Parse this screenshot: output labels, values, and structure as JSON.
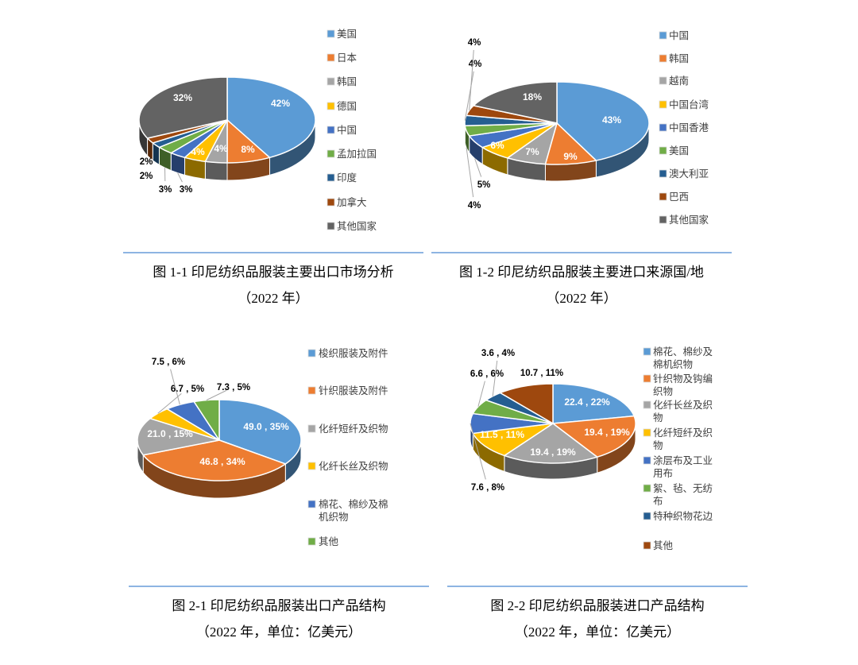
{
  "page": {
    "background_color": "#ffffff",
    "divider_color": "#8DB4E2"
  },
  "chart_data": [
    {
      "id": "fig-1-1",
      "type": "pie",
      "style": "3d-pie",
      "title": "图 1-1 印尼纺织品服装主要出口市场分析",
      "subtitle": "（2022 年）",
      "unit": "%",
      "legend_position": "right",
      "labels": [
        "美国",
        "日本",
        "韩国",
        "德国",
        "中国",
        "孟加拉国",
        "印度",
        "加拿大",
        "其他国家"
      ],
      "values": [
        42,
        8,
        4,
        4,
        3,
        3,
        2,
        2,
        32
      ],
      "data_labels": [
        "42%",
        "8%",
        "4%",
        "4%",
        "3%",
        "3%",
        "2%",
        "2%",
        "32%"
      ],
      "colors": [
        "#5B9BD5",
        "#ED7D31",
        "#A5A5A5",
        "#FFC000",
        "#4472C4",
        "#70AD47",
        "#255E91",
        "#9E480E",
        "#636363"
      ]
    },
    {
      "id": "fig-1-2",
      "type": "pie",
      "style": "3d-pie",
      "title": "图 1-2 印尼纺织品服装主要进口来源国/地",
      "subtitle": "（2022 年）",
      "unit": "%",
      "legend_position": "right",
      "labels": [
        "中国",
        "韩国",
        "越南",
        "中国台湾",
        "中国香港",
        "美国",
        "澳大利亚",
        "巴西",
        "其他国家"
      ],
      "values": [
        43,
        9,
        7,
        6,
        5,
        4,
        4,
        4,
        18
      ],
      "data_labels": [
        "43%",
        "9%",
        "7%",
        "6%",
        "5%",
        "4%",
        "4%",
        "4%",
        "18%"
      ],
      "colors": [
        "#5B9BD5",
        "#ED7D31",
        "#A5A5A5",
        "#FFC000",
        "#4472C4",
        "#70AD47",
        "#255E91",
        "#9E480E",
        "#636363"
      ]
    },
    {
      "id": "fig-2-1",
      "type": "pie",
      "style": "3d-pie",
      "title": "图 2-1 印尼纺织品服装出口产品结构",
      "subtitle": "（2022 年，单位：亿美元）",
      "unit": "亿美元",
      "legend_position": "right",
      "labels": [
        "梭织服装及附件",
        "针织服装及附件",
        "化纤短纤及织物",
        "化纤长丝及织物",
        "棉花、棉纱及棉机织物",
        "其他"
      ],
      "values": [
        49.0,
        46.8,
        21.0,
        6.7,
        7.5,
        7.3
      ],
      "percents": [
        35,
        34,
        15,
        5,
        6,
        5
      ],
      "data_labels": [
        "49.0 , 35%",
        "46.8 , 34%",
        "21.0 , 15%",
        "6.7 , 5%",
        "7.5 , 6%",
        "7.3 , 5%"
      ],
      "colors": [
        "#5B9BD5",
        "#ED7D31",
        "#A5A5A5",
        "#FFC000",
        "#4472C4",
        "#70AD47"
      ]
    },
    {
      "id": "fig-2-2",
      "type": "pie",
      "style": "3d-pie",
      "title": "图 2-2 印尼纺织品服装进口产品结构",
      "subtitle": "（2022 年，单位：亿美元）",
      "unit": "亿美元",
      "legend_position": "right",
      "labels": [
        "棉花、棉纱及棉机织物",
        "针织物及钩编织物",
        "化纤长丝及织物",
        "化纤短纤及织物",
        "涂层布及工业用布",
        "絮、毡、无纺布",
        "特种织物花边",
        "其他"
      ],
      "values": [
        22.4,
        19.4,
        19.4,
        11.5,
        7.6,
        6.6,
        3.6,
        10.7
      ],
      "percents": [
        22,
        19,
        19,
        11,
        8,
        6,
        4,
        11
      ],
      "data_labels": [
        "22.4 , 22%",
        "19.4 , 19%",
        "19.4 , 19%",
        "11.5 , 11%",
        "7.6 , 8%",
        "6.6 , 6%",
        "3.6 , 4%",
        "10.7 , 11%"
      ],
      "colors": [
        "#5B9BD5",
        "#ED7D31",
        "#A5A5A5",
        "#FFC000",
        "#4472C4",
        "#70AD47",
        "#255E91",
        "#9E480E"
      ]
    }
  ]
}
